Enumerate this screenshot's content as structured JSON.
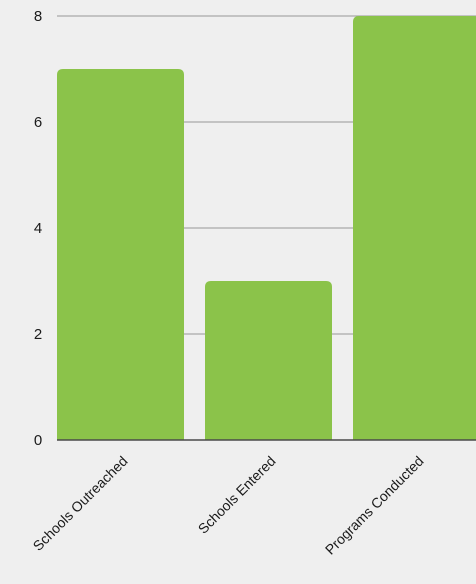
{
  "chart_data": {
    "type": "bar",
    "categories": [
      "Schools Outreached",
      "Schools Entered",
      "Programs Conducted"
    ],
    "values": [
      7,
      3,
      8
    ],
    "ylim": [
      0,
      8
    ],
    "yticks": [
      0,
      2,
      4,
      6,
      8
    ],
    "grid": true,
    "colors": {
      "bar": "#8bc34a",
      "grid": "#a9a9a9",
      "axis": "#4a4a4a",
      "background": "#efefef"
    }
  }
}
